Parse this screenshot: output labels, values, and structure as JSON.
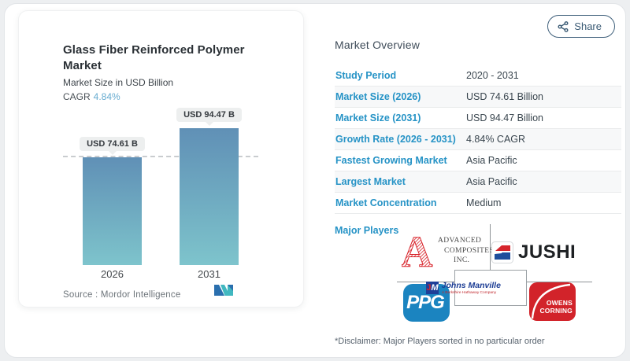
{
  "share": {
    "label": "Share"
  },
  "chart_card": {
    "title": "Glass Fiber Reinforced Polymer Market",
    "subtitle": "Market Size in USD Billion",
    "cagr_label": "CAGR",
    "cagr_value": "4.84%",
    "source_label": "Source :  Mordor Intelligence"
  },
  "chart_data": {
    "type": "bar",
    "categories": [
      "2026",
      "2031"
    ],
    "values": [
      74.61,
      94.47
    ],
    "value_labels": [
      "USD 74.61 B",
      "USD 94.47 B"
    ],
    "title": "Glass Fiber Reinforced Polymer Market",
    "ylabel": "Market Size in USD Billion",
    "cagr": "4.84%",
    "dashed_reference_value": 74.61,
    "bar_gradient": [
      "#6090b6",
      "#7ec4cd"
    ],
    "legend": "off",
    "grid": "off"
  },
  "overview": {
    "heading": "Market Overview",
    "rows": [
      {
        "label": "Study Period",
        "value": "2020 - 2031"
      },
      {
        "label": "Market Size (2026)",
        "value": "USD 74.61 Billion"
      },
      {
        "label": "Market Size (2031)",
        "value": "USD 94.47 Billion"
      },
      {
        "label": "Growth Rate (2026 - 2031)",
        "value": "4.84% CAGR"
      },
      {
        "label": "Fastest Growing Market",
        "value": "Asia Pacific"
      },
      {
        "label": "Largest Market",
        "value": "Asia Pacific"
      },
      {
        "label": "Market Concentration",
        "value": "Medium"
      }
    ],
    "major_players_label": "Major Players",
    "major_players": [
      "Advanced Composites Inc.",
      "Jushi",
      "PPG",
      "Johns Manville",
      "Owens Corning"
    ],
    "disclaimer": "*Disclaimer: Major Players sorted in no particular order"
  },
  "logos": {
    "aci": {
      "glyph": "A",
      "line1": "ADVANCED",
      "line2": "COMPOSITES",
      "line3": "INC."
    },
    "jushi": {
      "text": "JUSHI"
    },
    "ppg": {
      "text": "PPG"
    },
    "jm": {
      "mark": "JM",
      "name": "Johns Manville",
      "tagline": "A Berkshire Hathaway Company"
    },
    "oc": {
      "line1": "OWENS",
      "line2": "CORNING"
    }
  },
  "colors": {
    "label_blue": "#2693c6",
    "cagr_blue": "#66abd0",
    "share_border": "#41617c",
    "aci_red": "#d8232a",
    "jushi_red": "#d6252c",
    "jushi_blue": "#1f4e9c",
    "ppg_blue": "#1b84c0",
    "jm_blue": "#1e3f98",
    "oc_red": "#d2232a",
    "mordor_dark": "#2a6fae",
    "mordor_teal": "#41b8c0"
  }
}
